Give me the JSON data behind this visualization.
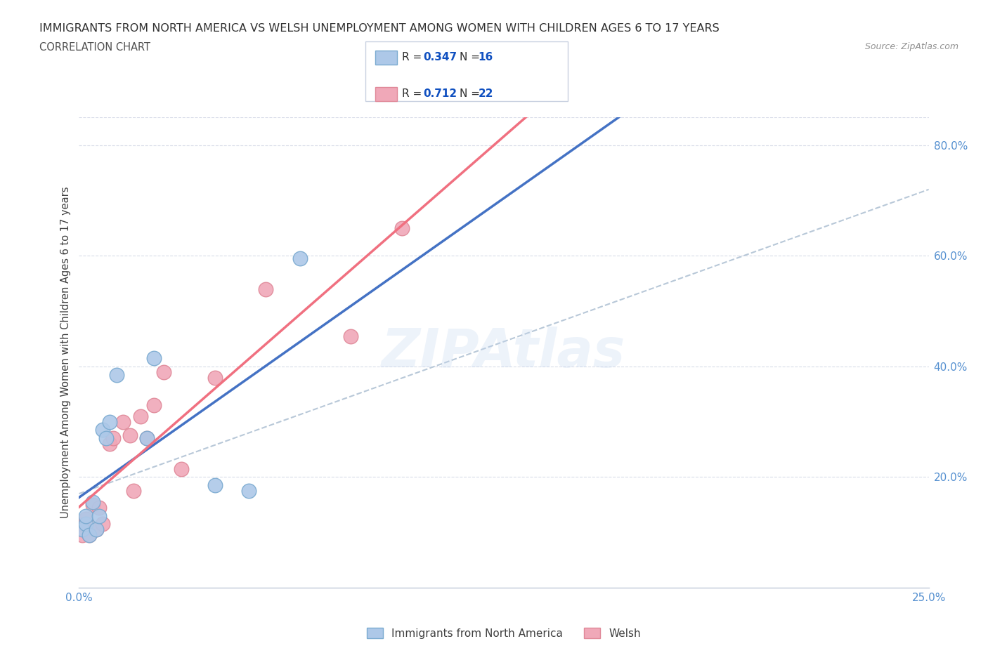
{
  "title_line1": "IMMIGRANTS FROM NORTH AMERICA VS WELSH UNEMPLOYMENT AMONG WOMEN WITH CHILDREN AGES 6 TO 17 YEARS",
  "title_line2": "CORRELATION CHART",
  "source": "Source: ZipAtlas.com",
  "xlim": [
    0.0,
    0.25
  ],
  "ylim": [
    0.0,
    0.85
  ],
  "watermark": "ZIPAtlas",
  "legend_R1": "0.347",
  "legend_N1": "16",
  "legend_R2": "0.712",
  "legend_N2": "22",
  "blue_scatter_x": [
    0.001,
    0.002,
    0.002,
    0.003,
    0.004,
    0.005,
    0.006,
    0.007,
    0.008,
    0.009,
    0.011,
    0.02,
    0.022,
    0.04,
    0.05,
    0.065
  ],
  "blue_scatter_y": [
    0.105,
    0.115,
    0.13,
    0.095,
    0.155,
    0.105,
    0.13,
    0.285,
    0.27,
    0.3,
    0.385,
    0.27,
    0.415,
    0.185,
    0.175,
    0.595
  ],
  "pink_scatter_x": [
    0.001,
    0.001,
    0.002,
    0.003,
    0.004,
    0.005,
    0.006,
    0.007,
    0.009,
    0.01,
    0.013,
    0.015,
    0.016,
    0.018,
    0.02,
    0.022,
    0.025,
    0.03,
    0.04,
    0.055,
    0.08,
    0.095
  ],
  "pink_scatter_y": [
    0.095,
    0.115,
    0.125,
    0.095,
    0.15,
    0.105,
    0.145,
    0.115,
    0.26,
    0.27,
    0.3,
    0.275,
    0.175,
    0.31,
    0.27,
    0.33,
    0.39,
    0.215,
    0.38,
    0.54,
    0.455,
    0.65
  ],
  "blue_color": "#adc8e8",
  "pink_color": "#f0a8b8",
  "blue_line_color": "#4472c4",
  "pink_line_color": "#f07080",
  "dashed_line_color": "#b8c8d8",
  "blue_marker_edge": "#7aaad0",
  "pink_marker_edge": "#e08898",
  "title_color": "#303030",
  "subtitle_color": "#505050",
  "source_color": "#909090",
  "legend_value_color": "#1050c0",
  "tick_label_color": "#5590d0",
  "ylabel": "Unemployment Among Women with Children Ages 6 to 17 years",
  "grid_color": "#d8dce8"
}
